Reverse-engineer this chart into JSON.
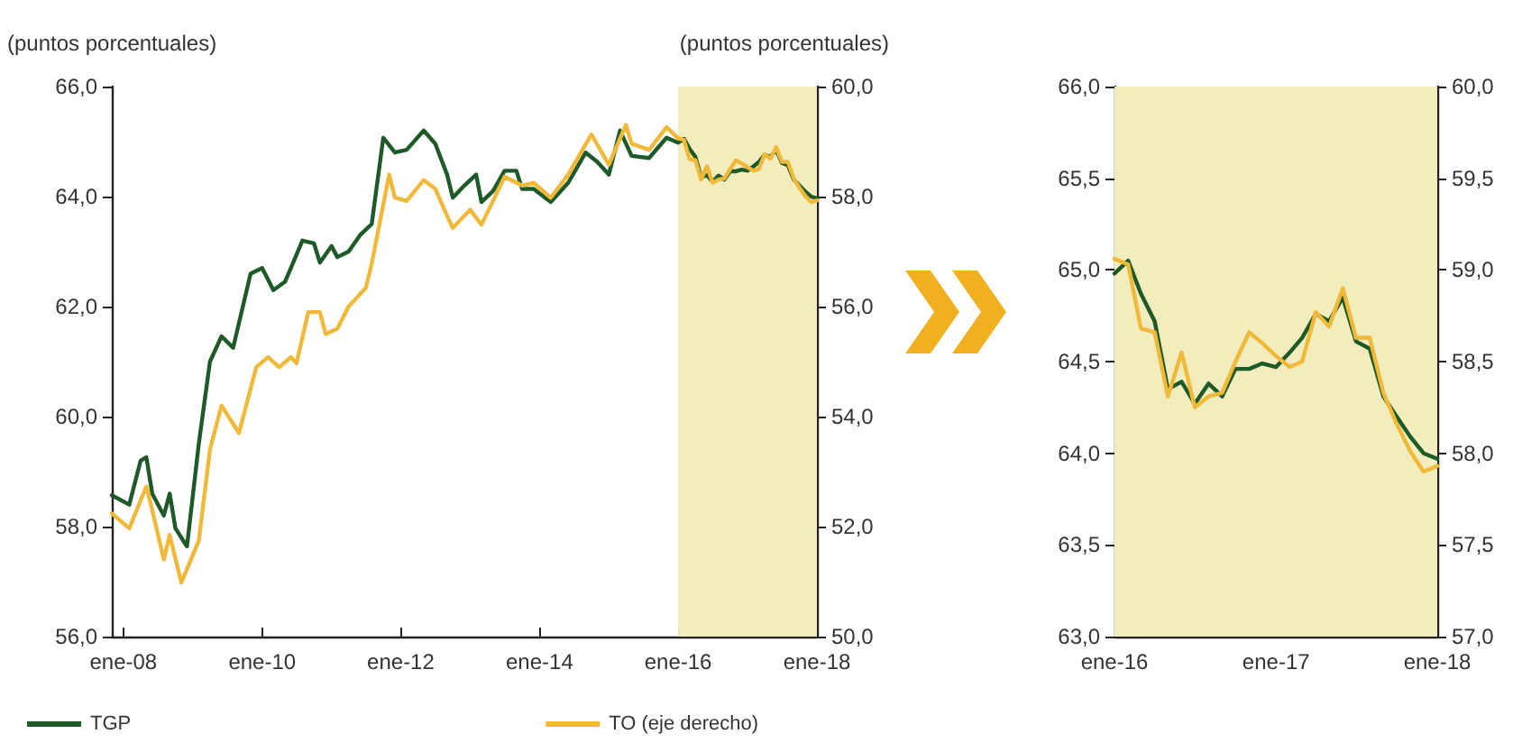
{
  "chart_data": [
    {
      "type": "line",
      "ylabel": "(puntos porcentuales)",
      "y2label": "(puntos porcentuales)",
      "legend": "bottom",
      "xlim": [
        "2007-11",
        "2018-01"
      ],
      "xticks": [
        {
          "value": "2008-01",
          "label": "ene-08"
        },
        {
          "value": "2010-01",
          "label": "ene-10"
        },
        {
          "value": "2012-01",
          "label": "ene-12"
        },
        {
          "value": "2014-01",
          "label": "ene-14"
        },
        {
          "value": "2016-01",
          "label": "ene-16"
        },
        {
          "value": "2018-01",
          "label": "ene-18"
        }
      ],
      "ylim": [
        56,
        66
      ],
      "yticks": [
        {
          "value": 56,
          "label": "56,0"
        },
        {
          "value": 58,
          "label": "58,0"
        },
        {
          "value": 60,
          "label": "60,0"
        },
        {
          "value": 62,
          "label": "62,0"
        },
        {
          "value": 64,
          "label": "64,0"
        },
        {
          "value": 66,
          "label": "66,0"
        }
      ],
      "y2lim": [
        50,
        60
      ],
      "y2ticks": [
        {
          "value": 50,
          "label": "50,0"
        },
        {
          "value": 52,
          "label": "52,0"
        },
        {
          "value": 54,
          "label": "54,0"
        },
        {
          "value": 56,
          "label": "56,0"
        },
        {
          "value": 58,
          "label": "58,0"
        },
        {
          "value": 60,
          "label": "60,0"
        }
      ],
      "bands": [
        {
          "axis": "x",
          "from": "2016-01",
          "to": "2018-01",
          "color": "#f3ecbc"
        }
      ],
      "series": [
        {
          "name": "TGP",
          "color": "#1e5a28",
          "x": [
            "2007-11",
            "2008-02",
            "2008-04",
            "2008-05",
            "2008-06",
            "2008-08",
            "2008-09",
            "2008-10",
            "2008-12",
            "2009-02",
            "2009-04",
            "2009-06",
            "2009-08",
            "2009-11",
            "2010-01",
            "2010-03",
            "2010-05",
            "2010-06",
            "2010-08",
            "2010-10",
            "2010-11",
            "2011-01",
            "2011-02",
            "2011-04",
            "2011-06",
            "2011-07",
            "2011-08",
            "2011-10",
            "2011-12",
            "2012-02",
            "2012-05",
            "2012-07",
            "2012-09",
            "2012-10",
            "2012-12",
            "2013-02",
            "2013-03",
            "2013-05",
            "2013-07",
            "2013-09",
            "2013-10",
            "2013-12",
            "2014-03",
            "2014-06",
            "2014-09",
            "2014-11",
            "2015-01",
            "2015-03",
            "2015-05",
            "2015-08",
            "2015-11",
            "2016-01",
            "2016-02",
            "2016-03",
            "2016-04",
            "2016-05",
            "2016-06",
            "2016-07",
            "2016-08",
            "2016-09",
            "2016-10",
            "2016-11",
            "2016-12",
            "2017-01",
            "2017-02",
            "2017-03",
            "2017-04",
            "2017-05",
            "2017-06",
            "2017-07",
            "2017-08",
            "2017-09",
            "2017-10",
            "2017-11",
            "2017-12",
            "2018-01"
          ],
          "values": [
            58.57,
            58.4,
            59.2,
            59.26,
            58.6,
            58.2,
            58.6,
            57.97,
            57.64,
            59.5,
            61.0,
            61.46,
            61.25,
            62.6,
            62.7,
            62.3,
            62.45,
            62.7,
            63.2,
            63.15,
            62.8,
            63.1,
            62.9,
            63.0,
            63.3,
            63.4,
            63.5,
            65.07,
            64.8,
            64.85,
            65.2,
            64.96,
            64.4,
            63.98,
            64.2,
            64.4,
            63.9,
            64.1,
            64.47,
            64.47,
            64.14,
            64.14,
            63.9,
            64.25,
            64.8,
            64.63,
            64.4,
            65.2,
            64.74,
            64.7,
            65.07,
            64.98,
            65.05,
            64.87,
            64.72,
            64.35,
            64.39,
            64.27,
            64.38,
            64.31,
            64.46,
            64.46,
            64.49,
            64.47,
            64.55,
            64.63,
            64.76,
            64.72,
            64.85,
            64.61,
            64.57,
            64.31,
            64.2,
            64.09,
            64.0,
            63.97
          ]
        },
        {
          "name": "TO (eje derecho)",
          "color": "#f0b93a",
          "axis": "y2",
          "x": [
            "2007-11",
            "2008-02",
            "2008-05",
            "2008-06",
            "2008-08",
            "2008-09",
            "2008-11",
            "2009-02",
            "2009-04",
            "2009-06",
            "2009-09",
            "2009-12",
            "2010-02",
            "2010-04",
            "2010-06",
            "2010-07",
            "2010-09",
            "2010-11",
            "2010-12",
            "2011-02",
            "2011-04",
            "2011-07",
            "2011-08",
            "2011-11",
            "2011-12",
            "2012-02",
            "2012-05",
            "2012-07",
            "2012-09",
            "2012-10",
            "2012-12",
            "2013-01",
            "2013-03",
            "2013-05",
            "2013-07",
            "2013-10",
            "2013-12",
            "2014-03",
            "2014-06",
            "2014-10",
            "2015-01",
            "2015-04",
            "2015-05",
            "2015-08",
            "2015-11",
            "2016-01",
            "2016-02",
            "2016-03",
            "2016-04",
            "2016-05",
            "2016-06",
            "2016-07",
            "2016-08",
            "2016-09",
            "2016-10",
            "2016-11",
            "2016-12",
            "2017-01",
            "2017-02",
            "2017-03",
            "2017-04",
            "2017-05",
            "2017-06",
            "2017-07",
            "2017-08",
            "2017-09",
            "2017-10",
            "2017-11",
            "2017-12",
            "2018-01"
          ],
          "values": [
            52.24,
            51.97,
            52.73,
            52.3,
            51.4,
            51.85,
            50.98,
            51.74,
            53.4,
            54.2,
            53.7,
            54.9,
            55.08,
            54.9,
            55.08,
            54.97,
            55.9,
            55.9,
            55.5,
            55.6,
            56.0,
            56.34,
            56.78,
            58.4,
            57.98,
            57.92,
            58.3,
            58.14,
            57.65,
            57.43,
            57.65,
            57.76,
            57.49,
            57.92,
            58.36,
            58.2,
            58.25,
            57.98,
            58.4,
            59.13,
            58.58,
            59.3,
            58.96,
            58.85,
            59.26,
            59.06,
            59.03,
            58.68,
            58.66,
            58.31,
            58.55,
            58.25,
            58.31,
            58.33,
            58.5,
            58.66,
            58.6,
            58.53,
            58.47,
            58.5,
            58.77,
            58.69,
            58.9,
            58.63,
            58.63,
            58.33,
            58.16,
            58.01,
            57.9,
            57.93
          ]
        }
      ]
    },
    {
      "type": "line",
      "xlim": [
        "2016-01",
        "2018-01"
      ],
      "xticks": [
        {
          "value": "2016-01",
          "label": "ene-16"
        },
        {
          "value": "2017-01",
          "label": "ene-17"
        },
        {
          "value": "2018-01",
          "label": "ene-18"
        }
      ],
      "ylim": [
        63,
        66
      ],
      "yticks": [
        {
          "value": 63,
          "label": "63,0"
        },
        {
          "value": 63.5,
          "label": "63,5"
        },
        {
          "value": 64,
          "label": "64,0"
        },
        {
          "value": 64.5,
          "label": "64,5"
        },
        {
          "value": 65,
          "label": "65,0"
        },
        {
          "value": 65.5,
          "label": "65,5"
        },
        {
          "value": 66,
          "label": "66,0"
        }
      ],
      "y2lim": [
        57,
        60
      ],
      "y2ticks": [
        {
          "value": 57,
          "label": "57,0"
        },
        {
          "value": 57.5,
          "label": "57,5"
        },
        {
          "value": 58,
          "label": "58,0"
        },
        {
          "value": 58.5,
          "label": "58,5"
        },
        {
          "value": 59,
          "label": "59,0"
        },
        {
          "value": 59.5,
          "label": "59,5"
        },
        {
          "value": 60,
          "label": "60,0"
        }
      ],
      "bands": [
        {
          "axis": "x",
          "from": "2016-01",
          "to": "2018-01",
          "color": "#f3ecbc"
        }
      ],
      "series": [
        {
          "color": "#1e5a28",
          "x": [
            "2016-01",
            "2016-02",
            "2016-03",
            "2016-04",
            "2016-05",
            "2016-06",
            "2016-07",
            "2016-08",
            "2016-09",
            "2016-10",
            "2016-11",
            "2016-12",
            "2017-01",
            "2017-02",
            "2017-03",
            "2017-04",
            "2017-05",
            "2017-06",
            "2017-07",
            "2017-08",
            "2017-09",
            "2017-10",
            "2017-11",
            "2017-12",
            "2018-01"
          ],
          "values": [
            64.98,
            65.05,
            64.87,
            64.72,
            64.35,
            64.39,
            64.27,
            64.38,
            64.31,
            64.46,
            64.46,
            64.49,
            64.47,
            64.55,
            64.63,
            64.76,
            64.72,
            64.85,
            64.61,
            64.57,
            64.31,
            64.2,
            64.09,
            64.0,
            63.97
          ]
        },
        {
          "color": "#f0b93a",
          "axis": "y2",
          "x": [
            "2016-01",
            "2016-02",
            "2016-03",
            "2016-04",
            "2016-05",
            "2016-06",
            "2016-07",
            "2016-08",
            "2016-09",
            "2016-10",
            "2016-11",
            "2016-12",
            "2017-01",
            "2017-02",
            "2017-03",
            "2017-04",
            "2017-05",
            "2017-06",
            "2017-07",
            "2017-08",
            "2017-09",
            "2017-10",
            "2017-11",
            "2017-12",
            "2018-01"
          ],
          "values": [
            59.06,
            59.03,
            58.68,
            58.66,
            58.31,
            58.55,
            58.25,
            58.31,
            58.33,
            58.5,
            58.66,
            58.6,
            58.53,
            58.47,
            58.5,
            58.77,
            58.69,
            58.9,
            58.63,
            58.63,
            58.33,
            58.16,
            58.01,
            57.9,
            57.93
          ]
        }
      ]
    }
  ]
}
